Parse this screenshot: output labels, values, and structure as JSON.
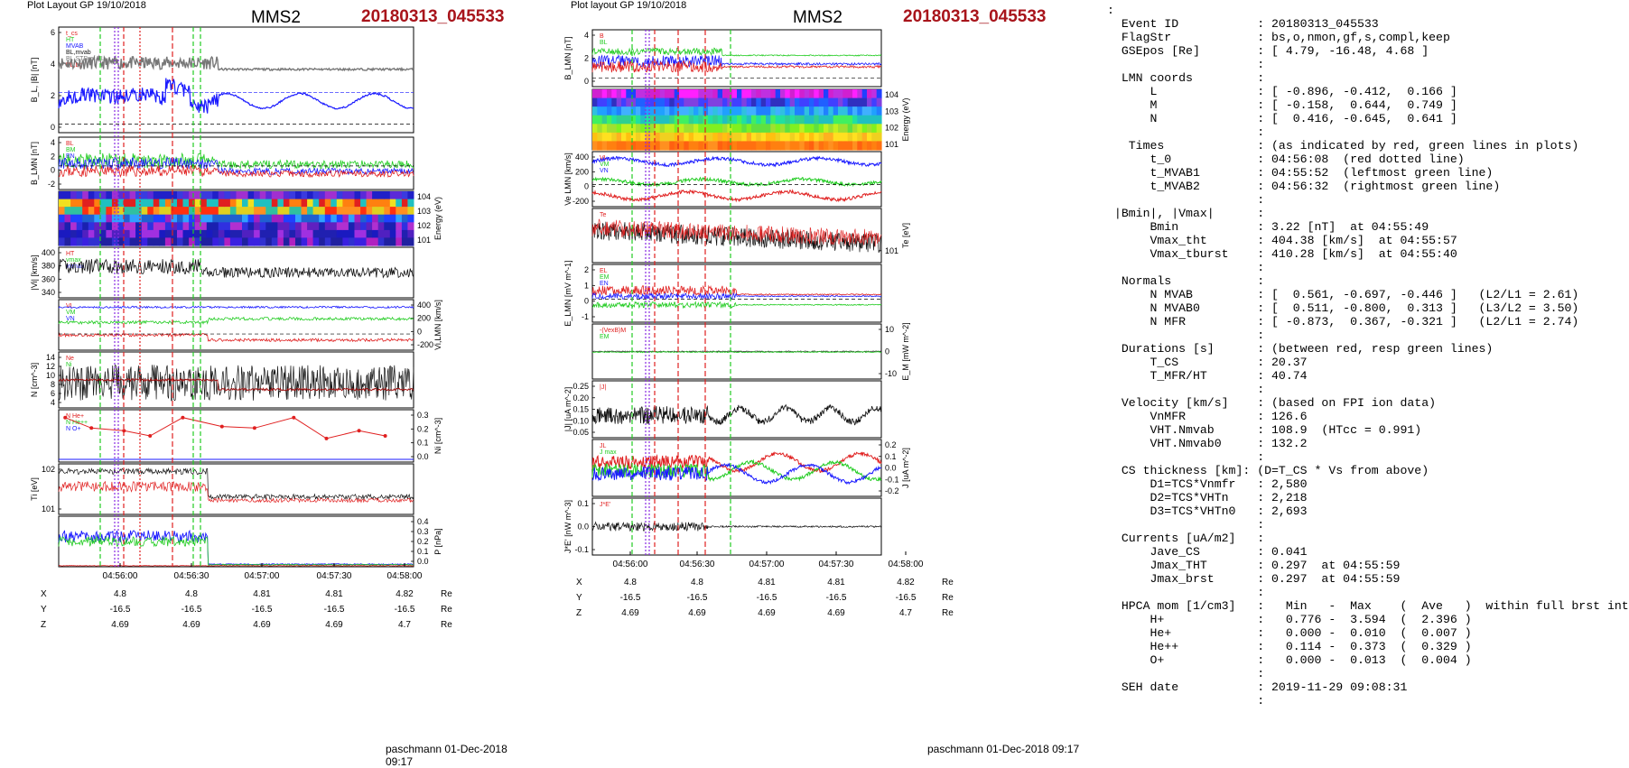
{
  "left": {
    "header": "Plot Layout GP 19/10/2018",
    "spacecraft": "MMS2",
    "event": "20180313_045533",
    "footer": "paschmann 01-Dec-2018 09:17",
    "panels": [
      {
        "id": "B",
        "ylabel": "B_L, |B| [nT]",
        "yticks": [
          "6",
          "4",
          "2",
          "0"
        ],
        "legend": [
          "t_cs",
          "HT",
          "MVAB",
          "BL,mvab",
          "BL,STD of BL",
          "BL,bg"
        ]
      },
      {
        "id": "BLMN",
        "ylabel": "B_LMN [nT]",
        "yticks": [
          "4",
          "2",
          "0",
          "-2"
        ],
        "legend": [
          "BL",
          "BM",
          "BN"
        ]
      },
      {
        "id": "ion_spec",
        "ylabel": "Energy (eV)",
        "yticks": [
          "10^4",
          "10^3",
          "10^2",
          "10^1"
        ]
      },
      {
        "id": "Vi",
        "ylabel": "|Vi| [km/s]",
        "yticks": [
          "400",
          "380",
          "360",
          "340"
        ],
        "legend": [
          "HT",
          "vmax",
          "vxmax"
        ]
      },
      {
        "id": "ViLMN",
        "ylabel": "Vi,LMN [km/s]",
        "yticks": [
          "400",
          "200",
          "0",
          "-200"
        ],
        "legend": [
          "VL",
          "VM",
          "VN"
        ]
      },
      {
        "id": "N",
        "ylabel": "N [cm^-3]",
        "yticks": [
          "14",
          "12",
          "10",
          "8",
          "6",
          "4"
        ],
        "legend": [
          "Ne",
          "Ni"
        ]
      },
      {
        "id": "Ni_hpca",
        "ylabel": "Ni [cm^-3]",
        "yticks": [
          "0.3",
          "0.2",
          "0.1",
          "0.0"
        ],
        "legend": [
          "N He+",
          "N He++",
          "N O+"
        ]
      },
      {
        "id": "Ti",
        "ylabel": "Ti [eV]",
        "yticks": [
          "10^2",
          "10^1"
        ]
      },
      {
        "id": "P",
        "ylabel": "P [nPa]",
        "yticks": [
          "0.4",
          "0.3",
          "0.2",
          "0.1",
          "0.0"
        ]
      }
    ],
    "xticks": [
      "04:56:00",
      "04:56:30",
      "04:57:00",
      "04:57:30",
      "04:58:00"
    ],
    "pos": {
      "X": [
        "4.8",
        "4.8",
        "4.81",
        "4.81",
        "4.82"
      ],
      "Y": [
        "-16.5",
        "-16.5",
        "-16.5",
        "-16.5",
        "-16.5"
      ],
      "Z": [
        "4.69",
        "4.69",
        "4.69",
        "4.69",
        "4.7"
      ],
      "unit": "Re"
    }
  },
  "right": {
    "header": "Plot layout GP 19/10/2018",
    "spacecraft": "MMS2",
    "event": "20180313_045533",
    "footer": "paschmann 01-Dec-2018 09:17",
    "panels": [
      {
        "id": "BLMN",
        "ylabel": "B_LMN [nT]",
        "yticks": [
          "4",
          "2",
          "0"
        ],
        "legend": [
          "B",
          "BL"
        ]
      },
      {
        "id": "e_spec",
        "ylabel": "Energy (eV)",
        "yticks": [
          "10^4",
          "10^3",
          "10^2",
          "10^1"
        ]
      },
      {
        "id": "VeLMN",
        "ylabel": "Ve LMN [km/s]",
        "yticks": [
          "400",
          "200",
          "0",
          "-200"
        ],
        "legend": [
          "VL",
          "VM",
          "VN"
        ]
      },
      {
        "id": "Te",
        "ylabel": "Te [eV]",
        "yticks": [
          "10^1"
        ],
        "legend": [
          "Te"
        ]
      },
      {
        "id": "ELMN",
        "ylabel": "E_LMN [mV m^-1]",
        "yticks": [
          "2",
          "1",
          "0",
          "-1"
        ],
        "legend": [
          "EL",
          "EM",
          "EN"
        ]
      },
      {
        "id": "EM",
        "ylabel": "E_M [mW m^-2]",
        "yticks": [
          "10",
          "0",
          "-10"
        ],
        "legend": [
          "-(VexB)M",
          "EM"
        ]
      },
      {
        "id": "J",
        "ylabel": "|J| [uA m^-2]",
        "yticks": [
          "0.25",
          "0.20",
          "0.15",
          "0.10",
          "0.05"
        ],
        "legend": [
          "|J|"
        ]
      },
      {
        "id": "JLMN",
        "ylabel": "J [uA m^-2]",
        "yticks": [
          "0.2",
          "0.1",
          "0.0",
          "-0.1",
          "-0.2"
        ],
        "legend": [
          "JL",
          "J max"
        ]
      },
      {
        "id": "JE",
        "ylabel": "J*E' [nW m^-3]",
        "yticks": [
          "0.1",
          "0.0",
          "-0.1"
        ],
        "legend": [
          "J*E'"
        ]
      }
    ],
    "xticks": [
      "04:56:00",
      "04:56:30",
      "04:57:00",
      "04:57:30",
      "04:58:00"
    ],
    "pos": {
      "X": [
        "4.8",
        "4.8",
        "4.81",
        "4.81",
        "4.82"
      ],
      "Y": [
        "-16.5",
        "-16.5",
        "-16.5",
        "-16.5",
        "-16.5"
      ],
      "Z": [
        "4.69",
        "4.69",
        "4.69",
        "4.69",
        "4.7"
      ],
      "unit": "Re"
    }
  },
  "info_lines": [
    ":",
    "  Event ID           : 20180313_045533",
    "  FlagStr            : bs,o,nmon,gf,s,compl,keep",
    "  GSEpos [Re]        : [ 4.79, -16.48, 4.68 ]",
    "                     :",
    "  LMN coords         :",
    "      L              : [ -0.896, -0.412,  0.166 ]",
    "      M              : [ -0.158,  0.644,  0.749 ]",
    "      N              : [  0.416, -0.645,  0.641 ]",
    "                     :",
    "   Times             : (as indicated by red, green lines in plots)",
    "      t_0            : 04:56:08  (red dotted line)",
    "      t_MVAB1        : 04:55:52  (leftmost green line)",
    "      t_MVAB2        : 04:56:32  (rightmost green line)",
    "                     :",
    " |Bmin|, |Vmax|      :",
    "      Bmin           : 3.22 [nT]  at 04:55:49",
    "      Vmax_tht       : 404.38 [km/s]  at 04:55:57",
    "      Vmax_tburst    : 410.28 [km/s]  at 04:55:40",
    "                     :",
    "  Normals            :",
    "      N MVAB         : [  0.561, -0.697, -0.446 ]   (L2/L1 = 2.61)",
    "      N MVAB0        : [  0.511, -0.800,  0.313 ]   (L3/L2 = 3.50)",
    "      N MFR          : [ -0.873,  0.367, -0.321 ]   (L2/L1 = 2.74)",
    "                     :",
    "  Durations [s]      : (between red, resp green lines)",
    "      T_CS           : 20.37",
    "      T_MFR/HT       : 40.74",
    "                     :",
    "  Velocity [km/s]    : (based on FPI ion data)",
    "      VnMFR          : 126.6",
    "      VHT.Nmvab      : 108.9  (HTcc = 0.991)",
    "      VHT.Nmvab0     : 132.2",
    "                     :",
    "  CS thickness [km]: (D=T_CS * Vs from above)",
    "      D1=TCS*Vnmfr   : 2,580",
    "      D2=TCS*VHTn    : 2,218",
    "      D3=TCS*VHTn0   : 2,693",
    "                     :",
    "  Currents [uA/m2]   :",
    "      Jave_CS        : 0.041",
    "      Jmax_THT       : 0.297  at 04:55:59",
    "      Jmax_brst      : 0.297  at 04:55:59",
    "                     :",
    "  HPCA mom [1/cm3]   :   Min   -  Max    (  Ave   )  within full brst int",
    "      H+             :   0.776 -  3.594  (  2.396 )",
    "      He+            :   0.000 -  0.010  (  0.007 )",
    "      He++           :   0.114 -  0.373  (  0.329 )",
    "      O+             :   0.000 -  0.013  (  0.004 )",
    "                     :",
    "  SEH date           : 2019-11-29 09:08:31",
    "                     :"
  ],
  "colors": {
    "red": "#e02020",
    "green": "#22cc22",
    "blue": "#1a1aff",
    "black": "#111111",
    "gray": "#777777",
    "event": "#a8141b"
  }
}
